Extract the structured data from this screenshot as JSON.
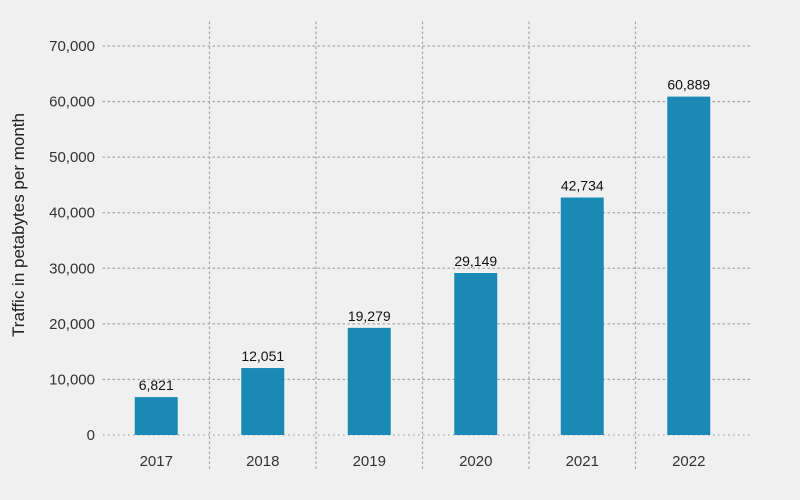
{
  "chart_data": {
    "type": "bar",
    "categories": [
      "2017",
      "2018",
      "2019",
      "2020",
      "2021",
      "2022"
    ],
    "values": [
      6821,
      12051,
      19279,
      29149,
      42734,
      60889
    ],
    "value_labels": [
      "6,821",
      "12,051",
      "19,279",
      "29,149",
      "42,734",
      "60,889"
    ],
    "title": "",
    "xlabel": "",
    "ylabel": "Traffic in petabytes per month",
    "ylim": [
      0,
      70000
    ],
    "yticks": [
      0,
      10000,
      20000,
      30000,
      40000,
      50000,
      60000,
      70000
    ],
    "ytick_labels": [
      "0",
      "10,000",
      "20,000",
      "30,000",
      "40,000",
      "50,000",
      "60,000",
      "70,000"
    ],
    "grid": true,
    "legend": "none",
    "colors": {
      "bar": "#1a8ab5",
      "background": "#f0f0f0",
      "grid": "#a8a8a8"
    }
  }
}
